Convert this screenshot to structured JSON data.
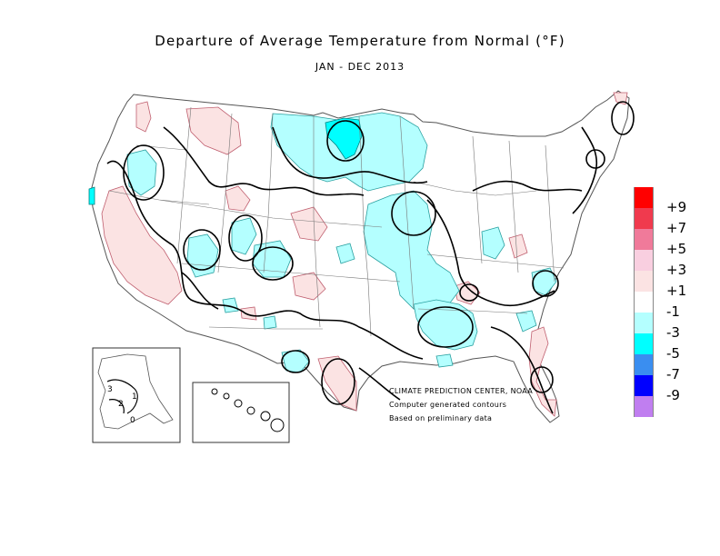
{
  "title": "Departure of Average Temperature from Normal (°F)",
  "subtitle": "JAN - DEC 2013",
  "legend": {
    "labels": [
      "+9",
      "+7",
      "+5",
      "+3",
      "+1",
      "-1",
      "-3",
      "-5",
      "-7",
      "-9"
    ],
    "colors": [
      "#ff0000",
      "#f03a4e",
      "#f07a9a",
      "#f9cfe0",
      "#fbe3e3",
      "#ffffff",
      "#b4ffff",
      "#00ffff",
      "#3a8ef0",
      "#0000ff",
      "#c07ef0"
    ]
  },
  "credits": {
    "line1": "CLIMATE PREDICTION CENTER, NOAA",
    "line2": "Computer generated contours",
    "line3": "Based on preliminary data"
  },
  "alaska_labels": [
    "1",
    "2",
    "3",
    "0"
  ],
  "colors": {
    "warm_fill": "#fbe3e3",
    "cool_fill": "#b4ffff",
    "cold_fill": "#00ffff",
    "state_lines": "#666666",
    "contours": "#000000"
  }
}
